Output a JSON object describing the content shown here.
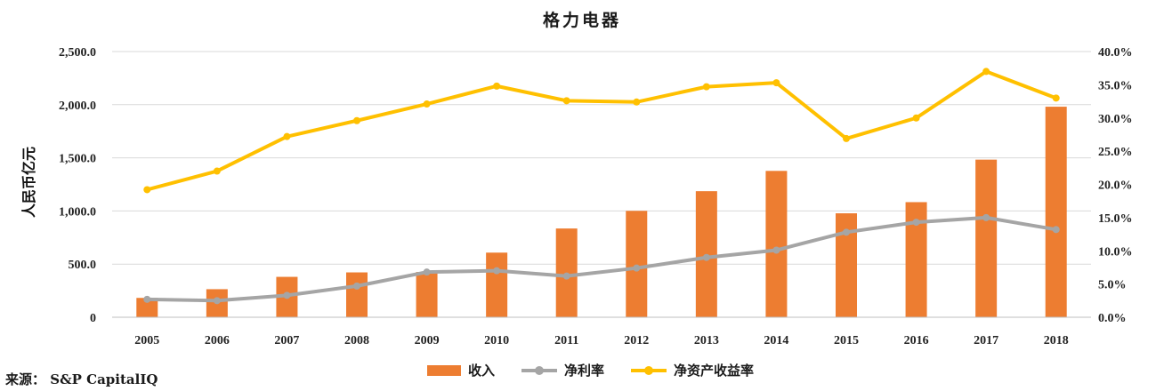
{
  "title": "格力电器",
  "source": {
    "label": "来源：",
    "text": "S&P CapitalIQ"
  },
  "colors": {
    "revenue": "#ED7D31",
    "net_margin": "#A5A5A5",
    "roe": "#FFC000",
    "grid": "#D9D9D9",
    "axis": "#BFBFBF"
  },
  "chart_data": {
    "type": "bar",
    "categories": [
      "2005",
      "2006",
      "2007",
      "2008",
      "2009",
      "2010",
      "2011",
      "2012",
      "2013",
      "2014",
      "2015",
      "2016",
      "2017",
      "2018"
    ],
    "series": [
      {
        "name": "收入",
        "type": "bar",
        "axis": "left",
        "values": [
          182,
          264,
          380,
          422,
          426,
          608,
          835,
          1001,
          1186,
          1377,
          978,
          1083,
          1483,
          1981
        ]
      },
      {
        "name": "净利率",
        "type": "line",
        "axis": "right",
        "values": [
          2.7,
          2.5,
          3.3,
          4.7,
          6.8,
          7.0,
          6.2,
          7.4,
          9.0,
          10.1,
          12.8,
          14.3,
          15.0,
          13.2
        ]
      },
      {
        "name": "净资产收益率",
        "type": "line",
        "axis": "right",
        "values": [
          19.2,
          22.0,
          27.2,
          29.6,
          32.1,
          34.8,
          32.6,
          32.4,
          34.7,
          35.3,
          26.9,
          30.0,
          37.0,
          33.0
        ]
      }
    ],
    "ylabel": "人民币亿元",
    "ylim": [
      0,
      2500
    ],
    "yticks": [
      "0",
      "500.0",
      "1,000.0",
      "1,500.0",
      "2,000.0",
      "2,500.0"
    ],
    "y2lim": [
      0,
      40
    ],
    "y2ticks": [
      "0.0%",
      "5.0%",
      "10.0%",
      "15.0%",
      "20.0%",
      "25.0%",
      "30.0%",
      "35.0%",
      "40.0%"
    ],
    "grid": true,
    "legend": "bottom"
  }
}
